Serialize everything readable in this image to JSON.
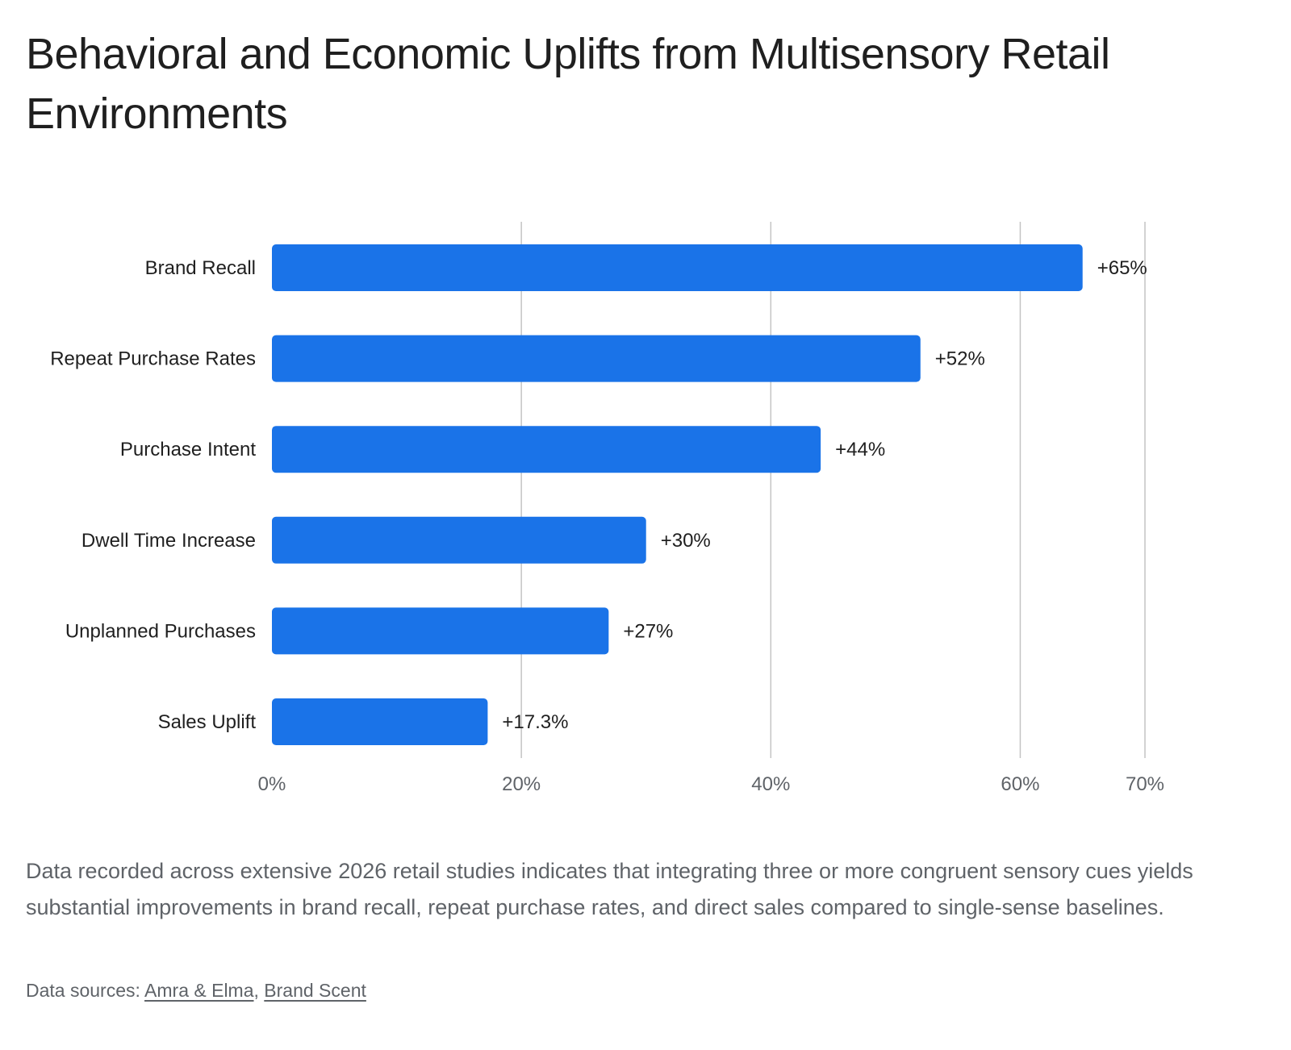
{
  "title": "Behavioral and Economic Uplifts from Multisensory Retail Environments",
  "caption": "Data recorded across extensive 2026 retail studies indicates that integrating three or more congruent sensory cues yields substantial improvements in brand recall, repeat purchase rates, and direct sales compared to single-sense baselines.",
  "sources": {
    "prefix": "Data sources: ",
    "links": [
      "Amra & Elma",
      "Brand Scent"
    ],
    "separator": ", "
  },
  "colors": {
    "bar": "#1a73e8",
    "grid": "#c4c4c4"
  },
  "chart_data": {
    "type": "bar",
    "orientation": "horizontal",
    "categories": [
      "Brand Recall",
      "Repeat Purchase Rates",
      "Purchase Intent",
      "Dwell Time Increase",
      "Unplanned Purchases",
      "Sales Uplift"
    ],
    "values": [
      65,
      52,
      44,
      30,
      27,
      17.3
    ],
    "data_labels": [
      "+65%",
      "+52%",
      "+44%",
      "+30%",
      "+27%",
      "+17.3%"
    ],
    "xlim": [
      0,
      70
    ],
    "x_ticks": [
      0,
      20,
      40,
      60,
      70
    ],
    "x_tick_labels": [
      "0%",
      "20%",
      "40%",
      "60%",
      "70%"
    ],
    "grid": true,
    "legend": "none"
  }
}
